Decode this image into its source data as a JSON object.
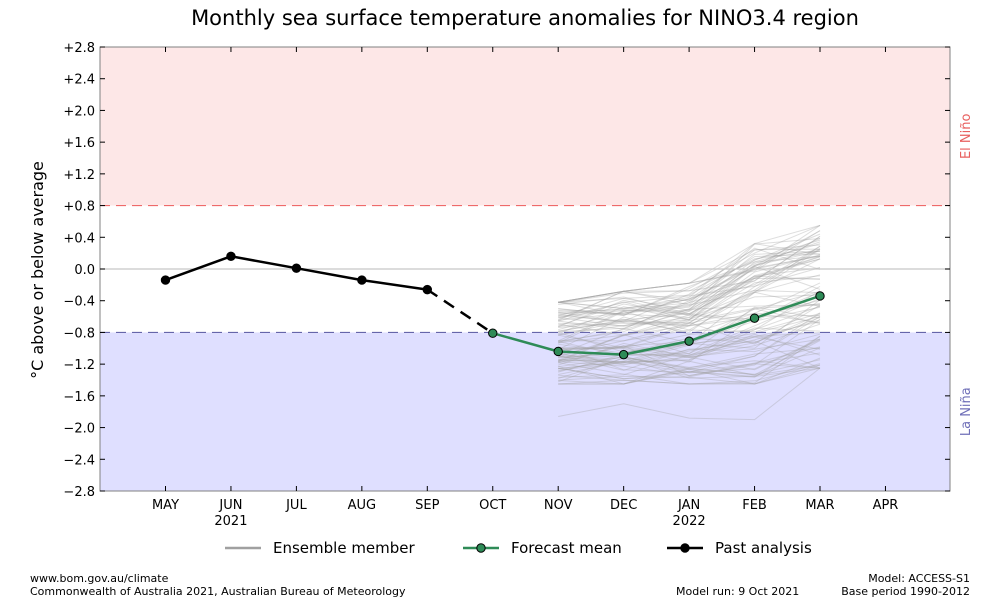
{
  "chart_data": {
    "type": "line",
    "title": "Monthly sea surface temperature anomalies for NINO3.4 region",
    "ylabel": "°C above or below average",
    "ylim": [
      -2.8,
      2.8
    ],
    "yticks": [
      "+2.8",
      "+2.4",
      "+2.0",
      "+1.6",
      "+1.2",
      "+0.8",
      "+0.4",
      "0.0",
      "−0.4",
      "−0.8",
      "−1.2",
      "−1.6",
      "−2.0",
      "−2.4",
      "−2.8"
    ],
    "ytick_values": [
      2.8,
      2.4,
      2.0,
      1.6,
      1.2,
      0.8,
      0.4,
      0.0,
      -0.4,
      -0.8,
      -1.2,
      -1.6,
      -2.0,
      -2.4,
      -2.8
    ],
    "months": [
      "MAY",
      "JUN",
      "JUL",
      "AUG",
      "SEP",
      "OCT",
      "NOV",
      "DEC",
      "JAN",
      "FEB",
      "MAR",
      "APR"
    ],
    "year_labels": [
      {
        "month": "JUN",
        "label": "2021"
      },
      {
        "month": "JAN",
        "label": "2022"
      }
    ],
    "thresholds": {
      "el_nino": 0.8,
      "la_nina": -0.8
    },
    "zones": [
      {
        "name": "El Niño",
        "from": 0.8,
        "to": 2.8,
        "color": "#fde7e7",
        "line_color": "#ee6a6a",
        "label_color": "#e8605f"
      },
      {
        "name": "La Niña",
        "from": -2.8,
        "to": -0.8,
        "color": "#dfdfff",
        "line_color": "#6666aa",
        "label_color": "#7070b8"
      }
    ],
    "series": [
      {
        "name": "Past analysis",
        "color": "#000000",
        "x": [
          "MAY",
          "JUN",
          "JUL",
          "AUG",
          "SEP"
        ],
        "values": [
          -0.14,
          0.16,
          0.01,
          -0.14,
          -0.26
        ]
      },
      {
        "name": "Forecast mean",
        "color": "#2e8b57",
        "x": [
          "OCT",
          "NOV",
          "DEC",
          "JAN",
          "FEB",
          "MAR"
        ],
        "values": [
          -0.81,
          -1.04,
          -1.08,
          -0.91,
          -0.62,
          -0.34
        ]
      }
    ],
    "connector": {
      "from": {
        "month": "SEP",
        "value": -0.26
      },
      "to": {
        "month": "OCT",
        "value": -0.81
      },
      "style": "dashed"
    },
    "ensemble": {
      "name": "Ensemble member",
      "color": "#a0a0a0",
      "x": [
        "NOV",
        "DEC",
        "JAN",
        "FEB",
        "MAR"
      ],
      "min": [
        -1.86,
        -1.7,
        -1.88,
        -1.9,
        -1.25
      ],
      "max": [
        -0.42,
        -0.28,
        -0.18,
        0.32,
        0.55
      ]
    },
    "legend": {
      "placement": "bottom",
      "items": [
        "Ensemble member",
        "Forecast mean",
        "Past analysis"
      ]
    }
  },
  "footer": {
    "url": "www.bom.gov.au/climate",
    "copyright": "Commonwealth of Australia 2021, Australian Bureau of Meteorology",
    "model_run": "Model run: 9 Oct 2021",
    "model": "Model: ACCESS-S1",
    "base_period": "Base period 1990-2012"
  }
}
